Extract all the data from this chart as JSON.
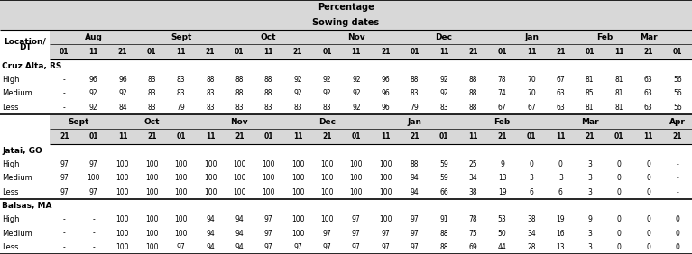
{
  "title_row1": "Percentage",
  "title_row2": "Sowing dates",
  "cruz_alta_month_headers": [
    {
      "label": "Aug",
      "span": 3
    },
    {
      "label": "Sept",
      "span": 3
    },
    {
      "label": "Oct",
      "span": 3
    },
    {
      "label": "Nov",
      "span": 3
    },
    {
      "label": "Dec",
      "span": 3
    },
    {
      "label": "Jan",
      "span": 3
    },
    {
      "label": "Feb",
      "span": 2
    },
    {
      "label": "Mar",
      "span": 1
    }
  ],
  "cruz_alta_header_cols": [
    "01",
    "11",
    "21",
    "01",
    "11",
    "21",
    "01",
    "11",
    "21",
    "01",
    "11",
    "21",
    "01",
    "11",
    "21",
    "01",
    "11",
    "21",
    "01",
    "11",
    "21",
    "01"
  ],
  "jatai_month_headers": [
    {
      "label": "Sept",
      "span": 2
    },
    {
      "label": "Oct",
      "span": 3
    },
    {
      "label": "Nov",
      "span": 3
    },
    {
      "label": "Dec",
      "span": 3
    },
    {
      "label": "Jan",
      "span": 3
    },
    {
      "label": "Feb",
      "span": 3
    },
    {
      "label": "Mar",
      "span": 3
    },
    {
      "label": "Apr",
      "span": 3
    }
  ],
  "jatai_header_cols": [
    "21",
    "01",
    "11",
    "21",
    "01",
    "11",
    "21",
    "01",
    "11",
    "21",
    "01",
    "11",
    "21",
    "01",
    "11",
    "21",
    "01",
    "11",
    "21",
    "01",
    "11",
    "21"
  ],
  "cruz_alta_data": {
    "High": [
      "-",
      "96",
      "96",
      "83",
      "83",
      "88",
      "88",
      "88",
      "92",
      "92",
      "92",
      "96",
      "88",
      "92",
      "88",
      "78",
      "70",
      "67",
      "81",
      "81",
      "63",
      "56"
    ],
    "Medium": [
      "-",
      "92",
      "92",
      "83",
      "83",
      "83",
      "88",
      "88",
      "92",
      "92",
      "92",
      "96",
      "83",
      "92",
      "88",
      "74",
      "70",
      "63",
      "85",
      "81",
      "63",
      "56"
    ],
    "Less": [
      "-",
      "92",
      "84",
      "83",
      "79",
      "83",
      "83",
      "83",
      "83",
      "83",
      "92",
      "96",
      "79",
      "83",
      "88",
      "67",
      "67",
      "63",
      "81",
      "81",
      "63",
      "56"
    ]
  },
  "jatai_data": {
    "High": [
      "97",
      "97",
      "100",
      "100",
      "100",
      "100",
      "100",
      "100",
      "100",
      "100",
      "100",
      "100",
      "88",
      "59",
      "25",
      "9",
      "0",
      "0",
      "3",
      "0",
      "0",
      "-"
    ],
    "Medium": [
      "97",
      "100",
      "100",
      "100",
      "100",
      "100",
      "100",
      "100",
      "100",
      "100",
      "100",
      "100",
      "94",
      "59",
      "34",
      "13",
      "3",
      "3",
      "3",
      "0",
      "0",
      "-"
    ],
    "Less": [
      "97",
      "97",
      "100",
      "100",
      "100",
      "100",
      "100",
      "100",
      "100",
      "100",
      "100",
      "100",
      "94",
      "66",
      "38",
      "19",
      "6",
      "6",
      "3",
      "0",
      "0",
      "-"
    ]
  },
  "balsas_data": {
    "High": [
      "-",
      "-",
      "100",
      "100",
      "100",
      "94",
      "94",
      "97",
      "100",
      "100",
      "97",
      "100",
      "97",
      "91",
      "78",
      "53",
      "38",
      "19",
      "9",
      "0",
      "0",
      "0"
    ],
    "Medium": [
      "-",
      "-",
      "100",
      "100",
      "100",
      "94",
      "94",
      "97",
      "100",
      "97",
      "97",
      "97",
      "97",
      "88",
      "75",
      "50",
      "34",
      "16",
      "3",
      "0",
      "0",
      "0"
    ],
    "Less": [
      "-",
      "-",
      "100",
      "100",
      "97",
      "94",
      "94",
      "97",
      "97",
      "97",
      "97",
      "97",
      "97",
      "88",
      "69",
      "44",
      "28",
      "13",
      "3",
      "0",
      "0",
      "0"
    ]
  }
}
